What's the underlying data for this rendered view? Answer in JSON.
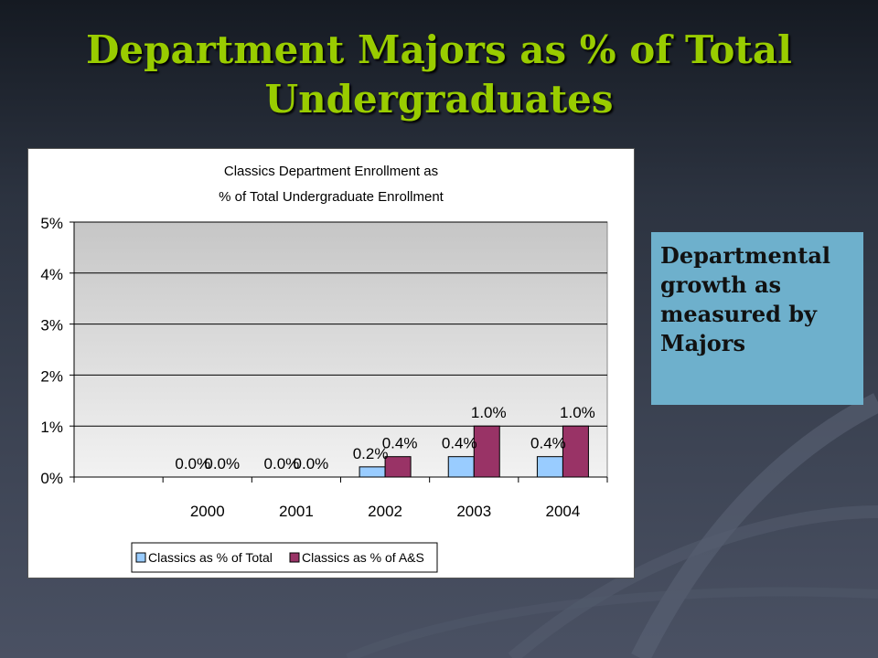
{
  "slide": {
    "title_line1": "Department Majors as % of Total",
    "title_line2": "Undergraduates",
    "callout_text": "Departmental growth as measured by Majors"
  },
  "colors": {
    "title": "#99cc00",
    "series_total": "#99ccff",
    "series_as": "#993366",
    "callout_bg": "#6eb0cc"
  },
  "chart_data": {
    "type": "bar",
    "title": "Classics Department Enrollment as % of Total Undergraduate Enrollment",
    "title_line1": "Classics Department Enrollment as",
    "title_line2": "% of Total Undergraduate Enrollment",
    "xlabel": "",
    "ylabel": "",
    "ylim": [
      0,
      5
    ],
    "yticks": [
      "0%",
      "1%",
      "2%",
      "3%",
      "4%",
      "5%"
    ],
    "categories": [
      "",
      "2000",
      "2001",
      "2002",
      "2003",
      "2004"
    ],
    "series": [
      {
        "name": "Classics as % of Total",
        "values": [
          null,
          0.0,
          0.0,
          0.2,
          0.4,
          0.4
        ],
        "labels": [
          "",
          "0.0%",
          "0.0%",
          "0.2%",
          "0.4%",
          "0.4%"
        ]
      },
      {
        "name": "Classics as % of A&S",
        "values": [
          null,
          0.0,
          0.0,
          0.4,
          1.0,
          1.0
        ],
        "labels": [
          "",
          "0.0%",
          "0.0%",
          "0.4%",
          "1.0%",
          "1.0%"
        ]
      }
    ],
    "grid": true,
    "legend_position": "bottom"
  }
}
